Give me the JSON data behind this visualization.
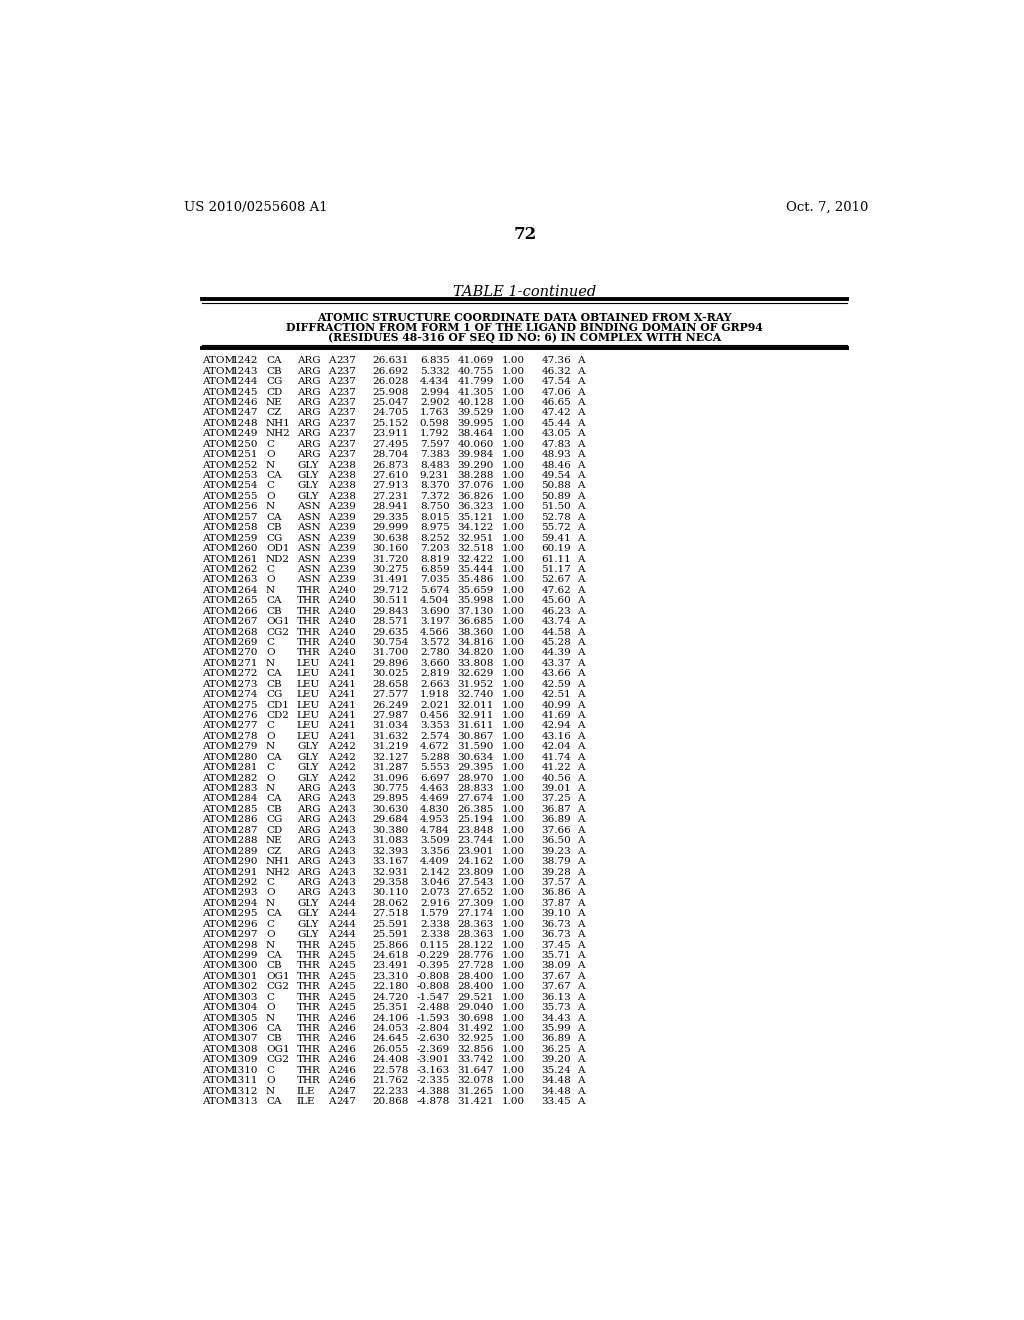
{
  "patent_number": "US 2010/0255608 A1",
  "date": "Oct. 7, 2010",
  "page_number": "72",
  "table_title": "TABLE 1-continued",
  "table_header_lines": [
    "ATOMIC STRUCTURE COORDINATE DATA OBTAINED FROM X-RAY",
    "DIFFRACTION FROM FORM 1 OF THE LIGAND BINDING DOMAIN OF GRP94",
    "(RESIDUES 48-316 OF SEQ ID NO: 6) IN COMPLEX WITH NECA"
  ],
  "rows": [
    [
      "ATOM",
      "1242",
      "CA",
      "ARG",
      "A",
      "237",
      "26.631",
      "6.835",
      "41.069",
      "1.00",
      "47.36",
      "A"
    ],
    [
      "ATOM",
      "1243",
      "CB",
      "ARG",
      "A",
      "237",
      "26.692",
      "5.332",
      "40.755",
      "1.00",
      "46.32",
      "A"
    ],
    [
      "ATOM",
      "1244",
      "CG",
      "ARG",
      "A",
      "237",
      "26.028",
      "4.434",
      "41.799",
      "1.00",
      "47.54",
      "A"
    ],
    [
      "ATOM",
      "1245",
      "CD",
      "ARG",
      "A",
      "237",
      "25.908",
      "2.994",
      "41.305",
      "1.00",
      "47.06",
      "A"
    ],
    [
      "ATOM",
      "1246",
      "NE",
      "ARG",
      "A",
      "237",
      "25.047",
      "2.902",
      "40.128",
      "1.00",
      "46.65",
      "A"
    ],
    [
      "ATOM",
      "1247",
      "CZ",
      "ARG",
      "A",
      "237",
      "24.705",
      "1.763",
      "39.529",
      "1.00",
      "47.42",
      "A"
    ],
    [
      "ATOM",
      "1248",
      "NH1",
      "ARG",
      "A",
      "237",
      "25.152",
      "0.598",
      "39.995",
      "1.00",
      "45.44",
      "A"
    ],
    [
      "ATOM",
      "1249",
      "NH2",
      "ARG",
      "A",
      "237",
      "23.911",
      "1.792",
      "38.464",
      "1.00",
      "43.05",
      "A"
    ],
    [
      "ATOM",
      "1250",
      "C",
      "ARG",
      "A",
      "237",
      "27.495",
      "7.597",
      "40.060",
      "1.00",
      "47.83",
      "A"
    ],
    [
      "ATOM",
      "1251",
      "O",
      "ARG",
      "A",
      "237",
      "28.704",
      "7.383",
      "39.984",
      "1.00",
      "48.93",
      "A"
    ],
    [
      "ATOM",
      "1252",
      "N",
      "GLY",
      "A",
      "238",
      "26.873",
      "8.483",
      "39.290",
      "1.00",
      "48.46",
      "A"
    ],
    [
      "ATOM",
      "1253",
      "CA",
      "GLY",
      "A",
      "238",
      "27.610",
      "9.231",
      "38.288",
      "1.00",
      "49.54",
      "A"
    ],
    [
      "ATOM",
      "1254",
      "C",
      "GLY",
      "A",
      "238",
      "27.913",
      "8.370",
      "37.076",
      "1.00",
      "50.88",
      "A"
    ],
    [
      "ATOM",
      "1255",
      "O",
      "GLY",
      "A",
      "238",
      "27.231",
      "7.372",
      "36.826",
      "1.00",
      "50.89",
      "A"
    ],
    [
      "ATOM",
      "1256",
      "N",
      "ASN",
      "A",
      "239",
      "28.941",
      "8.750",
      "36.323",
      "1.00",
      "51.50",
      "A"
    ],
    [
      "ATOM",
      "1257",
      "CA",
      "ASN",
      "A",
      "239",
      "29.335",
      "8.015",
      "35.121",
      "1.00",
      "52.78",
      "A"
    ],
    [
      "ATOM",
      "1258",
      "CB",
      "ASN",
      "A",
      "239",
      "29.999",
      "8.975",
      "34.122",
      "1.00",
      "55.72",
      "A"
    ],
    [
      "ATOM",
      "1259",
      "CG",
      "ASN",
      "A",
      "239",
      "30.638",
      "8.252",
      "32.951",
      "1.00",
      "59.41",
      "A"
    ],
    [
      "ATOM",
      "1260",
      "OD1",
      "ASN",
      "A",
      "239",
      "30.160",
      "7.203",
      "32.518",
      "1.00",
      "60.19",
      "A"
    ],
    [
      "ATOM",
      "1261",
      "ND2",
      "ASN",
      "A",
      "239",
      "31.720",
      "8.819",
      "32.422",
      "1.00",
      "61.11",
      "A"
    ],
    [
      "ATOM",
      "1262",
      "C",
      "ASN",
      "A",
      "239",
      "30.275",
      "6.859",
      "35.444",
      "1.00",
      "51.17",
      "A"
    ],
    [
      "ATOM",
      "1263",
      "O",
      "ASN",
      "A",
      "239",
      "31.491",
      "7.035",
      "35.486",
      "1.00",
      "52.67",
      "A"
    ],
    [
      "ATOM",
      "1264",
      "N",
      "THR",
      "A",
      "240",
      "29.712",
      "5.674",
      "35.659",
      "1.00",
      "47.62",
      "A"
    ],
    [
      "ATOM",
      "1265",
      "CA",
      "THR",
      "A",
      "240",
      "30.511",
      "4.504",
      "35.998",
      "1.00",
      "45.60",
      "A"
    ],
    [
      "ATOM",
      "1266",
      "CB",
      "THR",
      "A",
      "240",
      "29.843",
      "3.690",
      "37.130",
      "1.00",
      "46.23",
      "A"
    ],
    [
      "ATOM",
      "1267",
      "OG1",
      "THR",
      "A",
      "240",
      "28.571",
      "3.197",
      "36.685",
      "1.00",
      "43.74",
      "A"
    ],
    [
      "ATOM",
      "1268",
      "CG2",
      "THR",
      "A",
      "240",
      "29.635",
      "4.566",
      "38.360",
      "1.00",
      "44.58",
      "A"
    ],
    [
      "ATOM",
      "1269",
      "C",
      "THR",
      "A",
      "240",
      "30.754",
      "3.572",
      "34.816",
      "1.00",
      "45.28",
      "A"
    ],
    [
      "ATOM",
      "1270",
      "O",
      "THR",
      "A",
      "240",
      "31.700",
      "2.780",
      "34.820",
      "1.00",
      "44.39",
      "A"
    ],
    [
      "ATOM",
      "1271",
      "N",
      "LEU",
      "A",
      "241",
      "29.896",
      "3.660",
      "33.808",
      "1.00",
      "43.37",
      "A"
    ],
    [
      "ATOM",
      "1272",
      "CA",
      "LEU",
      "A",
      "241",
      "30.025",
      "2.819",
      "32.629",
      "1.00",
      "43.66",
      "A"
    ],
    [
      "ATOM",
      "1273",
      "CB",
      "LEU",
      "A",
      "241",
      "28.658",
      "2.663",
      "31.952",
      "1.00",
      "42.59",
      "A"
    ],
    [
      "ATOM",
      "1274",
      "CG",
      "LEU",
      "A",
      "241",
      "27.577",
      "1.918",
      "32.740",
      "1.00",
      "42.51",
      "A"
    ],
    [
      "ATOM",
      "1275",
      "CD1",
      "LEU",
      "A",
      "241",
      "26.249",
      "2.021",
      "32.011",
      "1.00",
      "40.99",
      "A"
    ],
    [
      "ATOM",
      "1276",
      "CD2",
      "LEU",
      "A",
      "241",
      "27.987",
      "0.456",
      "32.911",
      "1.00",
      "41.69",
      "A"
    ],
    [
      "ATOM",
      "1277",
      "C",
      "LEU",
      "A",
      "241",
      "31.034",
      "3.353",
      "31.611",
      "1.00",
      "42.94",
      "A"
    ],
    [
      "ATOM",
      "1278",
      "O",
      "LEU",
      "A",
      "241",
      "31.632",
      "2.574",
      "30.867",
      "1.00",
      "43.16",
      "A"
    ],
    [
      "ATOM",
      "1279",
      "N",
      "GLY",
      "A",
      "242",
      "31.219",
      "4.672",
      "31.590",
      "1.00",
      "42.04",
      "A"
    ],
    [
      "ATOM",
      "1280",
      "CA",
      "GLY",
      "A",
      "242",
      "32.127",
      "5.288",
      "30.634",
      "1.00",
      "41.74",
      "A"
    ],
    [
      "ATOM",
      "1281",
      "C",
      "GLY",
      "A",
      "242",
      "31.287",
      "5.553",
      "29.395",
      "1.00",
      "41.22",
      "A"
    ],
    [
      "ATOM",
      "1282",
      "O",
      "GLY",
      "A",
      "242",
      "31.096",
      "6.697",
      "28.970",
      "1.00",
      "40.56",
      "A"
    ],
    [
      "ATOM",
      "1283",
      "N",
      "ARG",
      "A",
      "243",
      "30.775",
      "4.463",
      "28.833",
      "1.00",
      "39.01",
      "A"
    ],
    [
      "ATOM",
      "1284",
      "CA",
      "ARG",
      "A",
      "243",
      "29.895",
      "4.469",
      "27.674",
      "1.00",
      "37.25",
      "A"
    ],
    [
      "ATOM",
      "1285",
      "CB",
      "ARG",
      "A",
      "243",
      "30.630",
      "4.830",
      "26.385",
      "1.00",
      "36.87",
      "A"
    ],
    [
      "ATOM",
      "1286",
      "CG",
      "ARG",
      "A",
      "243",
      "29.684",
      "4.953",
      "25.194",
      "1.00",
      "36.89",
      "A"
    ],
    [
      "ATOM",
      "1287",
      "CD",
      "ARG",
      "A",
      "243",
      "30.380",
      "4.784",
      "23.848",
      "1.00",
      "37.66",
      "A"
    ],
    [
      "ATOM",
      "1288",
      "NE",
      "ARG",
      "A",
      "243",
      "31.083",
      "3.509",
      "23.744",
      "1.00",
      "36.50",
      "A"
    ],
    [
      "ATOM",
      "1289",
      "CZ",
      "ARG",
      "A",
      "243",
      "32.393",
      "3.356",
      "23.901",
      "1.00",
      "39.23",
      "A"
    ],
    [
      "ATOM",
      "1290",
      "NH1",
      "ARG",
      "A",
      "243",
      "33.167",
      "4.409",
      "24.162",
      "1.00",
      "38.79",
      "A"
    ],
    [
      "ATOM",
      "1291",
      "NH2",
      "ARG",
      "A",
      "243",
      "32.931",
      "2.142",
      "23.809",
      "1.00",
      "39.28",
      "A"
    ],
    [
      "ATOM",
      "1292",
      "C",
      "ARG",
      "A",
      "243",
      "29.358",
      "3.046",
      "27.543",
      "1.00",
      "37.57",
      "A"
    ],
    [
      "ATOM",
      "1293",
      "O",
      "ARG",
      "A",
      "243",
      "30.110",
      "2.073",
      "27.652",
      "1.00",
      "36.86",
      "A"
    ],
    [
      "ATOM",
      "1294",
      "N",
      "GLY",
      "A",
      "244",
      "28.062",
      "2.916",
      "27.309",
      "1.00",
      "37.87",
      "A"
    ],
    [
      "ATOM",
      "1295",
      "CA",
      "GLY",
      "A",
      "244",
      "27.518",
      "1.579",
      "27.174",
      "1.00",
      "39.10",
      "A"
    ],
    [
      "ATOM",
      "1296",
      "C",
      "GLY",
      "A",
      "244",
      "25.591",
      "2.338",
      "28.363",
      "1.00",
      "36.73",
      "A"
    ],
    [
      "ATOM",
      "1297",
      "O",
      "GLY",
      "A",
      "244",
      "25.591",
      "2.338",
      "28.363",
      "1.00",
      "36.73",
      "A"
    ],
    [
      "ATOM",
      "1298",
      "N",
      "THR",
      "A",
      "245",
      "25.866",
      "0.115",
      "28.122",
      "1.00",
      "37.45",
      "A"
    ],
    [
      "ATOM",
      "1299",
      "CA",
      "THR",
      "A",
      "245",
      "24.618",
      "-0.229",
      "28.776",
      "1.00",
      "35.71",
      "A"
    ],
    [
      "ATOM",
      "1300",
      "CB",
      "THR",
      "A",
      "245",
      "23.491",
      "-0.395",
      "27.728",
      "1.00",
      "38.09",
      "A"
    ],
    [
      "ATOM",
      "1301",
      "OG1",
      "THR",
      "A",
      "245",
      "23.310",
      "-0.808",
      "28.400",
      "1.00",
      "37.67",
      "A"
    ],
    [
      "ATOM",
      "1302",
      "CG2",
      "THR",
      "A",
      "245",
      "22.180",
      "-0.808",
      "28.400",
      "1.00",
      "37.67",
      "A"
    ],
    [
      "ATOM",
      "1303",
      "C",
      "THR",
      "A",
      "245",
      "24.720",
      "-1.547",
      "29.521",
      "1.00",
      "36.13",
      "A"
    ],
    [
      "ATOM",
      "1304",
      "O",
      "THR",
      "A",
      "245",
      "25.351",
      "-2.488",
      "29.040",
      "1.00",
      "35.73",
      "A"
    ],
    [
      "ATOM",
      "1305",
      "N",
      "THR",
      "A",
      "246",
      "24.106",
      "-1.593",
      "30.698",
      "1.00",
      "34.43",
      "A"
    ],
    [
      "ATOM",
      "1306",
      "CA",
      "THR",
      "A",
      "246",
      "24.053",
      "-2.804",
      "31.492",
      "1.00",
      "35.99",
      "A"
    ],
    [
      "ATOM",
      "1307",
      "CB",
      "THR",
      "A",
      "246",
      "24.645",
      "-2.630",
      "32.925",
      "1.00",
      "36.89",
      "A"
    ],
    [
      "ATOM",
      "1308",
      "OG1",
      "THR",
      "A",
      "246",
      "26.055",
      "-2.369",
      "32.856",
      "1.00",
      "36.25",
      "A"
    ],
    [
      "ATOM",
      "1309",
      "CG2",
      "THR",
      "A",
      "246",
      "24.408",
      "-3.901",
      "33.742",
      "1.00",
      "39.20",
      "A"
    ],
    [
      "ATOM",
      "1310",
      "C",
      "THR",
      "A",
      "246",
      "22.578",
      "-3.163",
      "31.647",
      "1.00",
      "35.24",
      "A"
    ],
    [
      "ATOM",
      "1311",
      "O",
      "THR",
      "A",
      "246",
      "21.762",
      "-2.335",
      "32.078",
      "1.00",
      "34.48",
      "A"
    ],
    [
      "ATOM",
      "1312",
      "N",
      "ILE",
      "A",
      "247",
      "22.233",
      "-4.388",
      "31.265",
      "1.00",
      "34.48",
      "A"
    ],
    [
      "ATOM",
      "1313",
      "CA",
      "ILE",
      "A",
      "247",
      "20.868",
      "-4.878",
      "31.421",
      "1.00",
      "33.45",
      "A"
    ]
  ]
}
